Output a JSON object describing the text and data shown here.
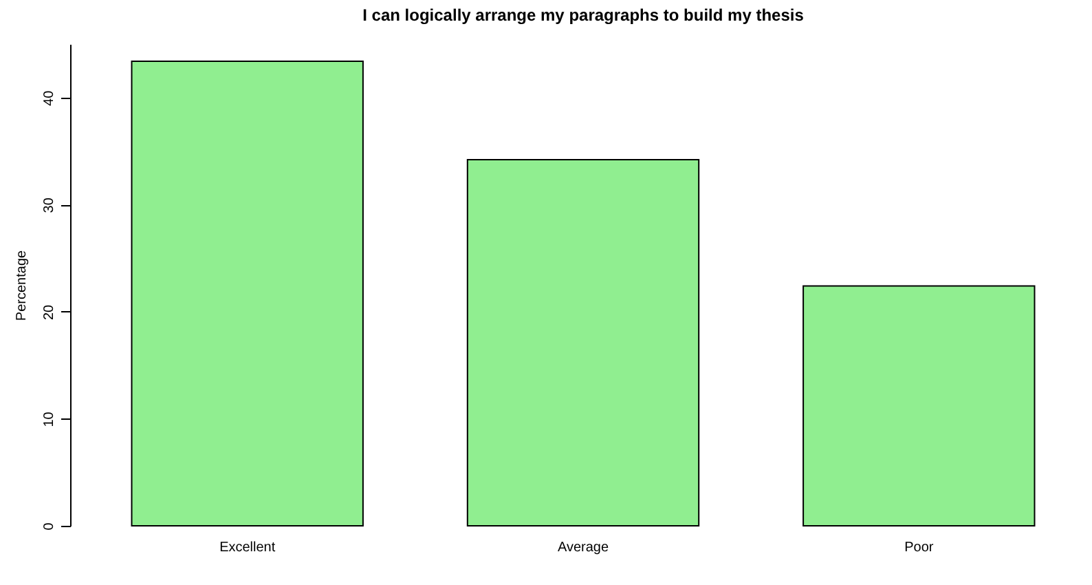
{
  "chart_data": {
    "type": "bar",
    "title": "I can logically arrange my paragraphs to build my thesis",
    "ylabel": "Percentage",
    "categories": [
      "Excellent",
      "Average",
      "Poor"
    ],
    "values": [
      43.4,
      34.2,
      22.4
    ],
    "color": "#90ee90",
    "ylim": [
      0,
      45
    ],
    "yticks": [
      0,
      10,
      20,
      30,
      40
    ],
    "grid": false
  }
}
